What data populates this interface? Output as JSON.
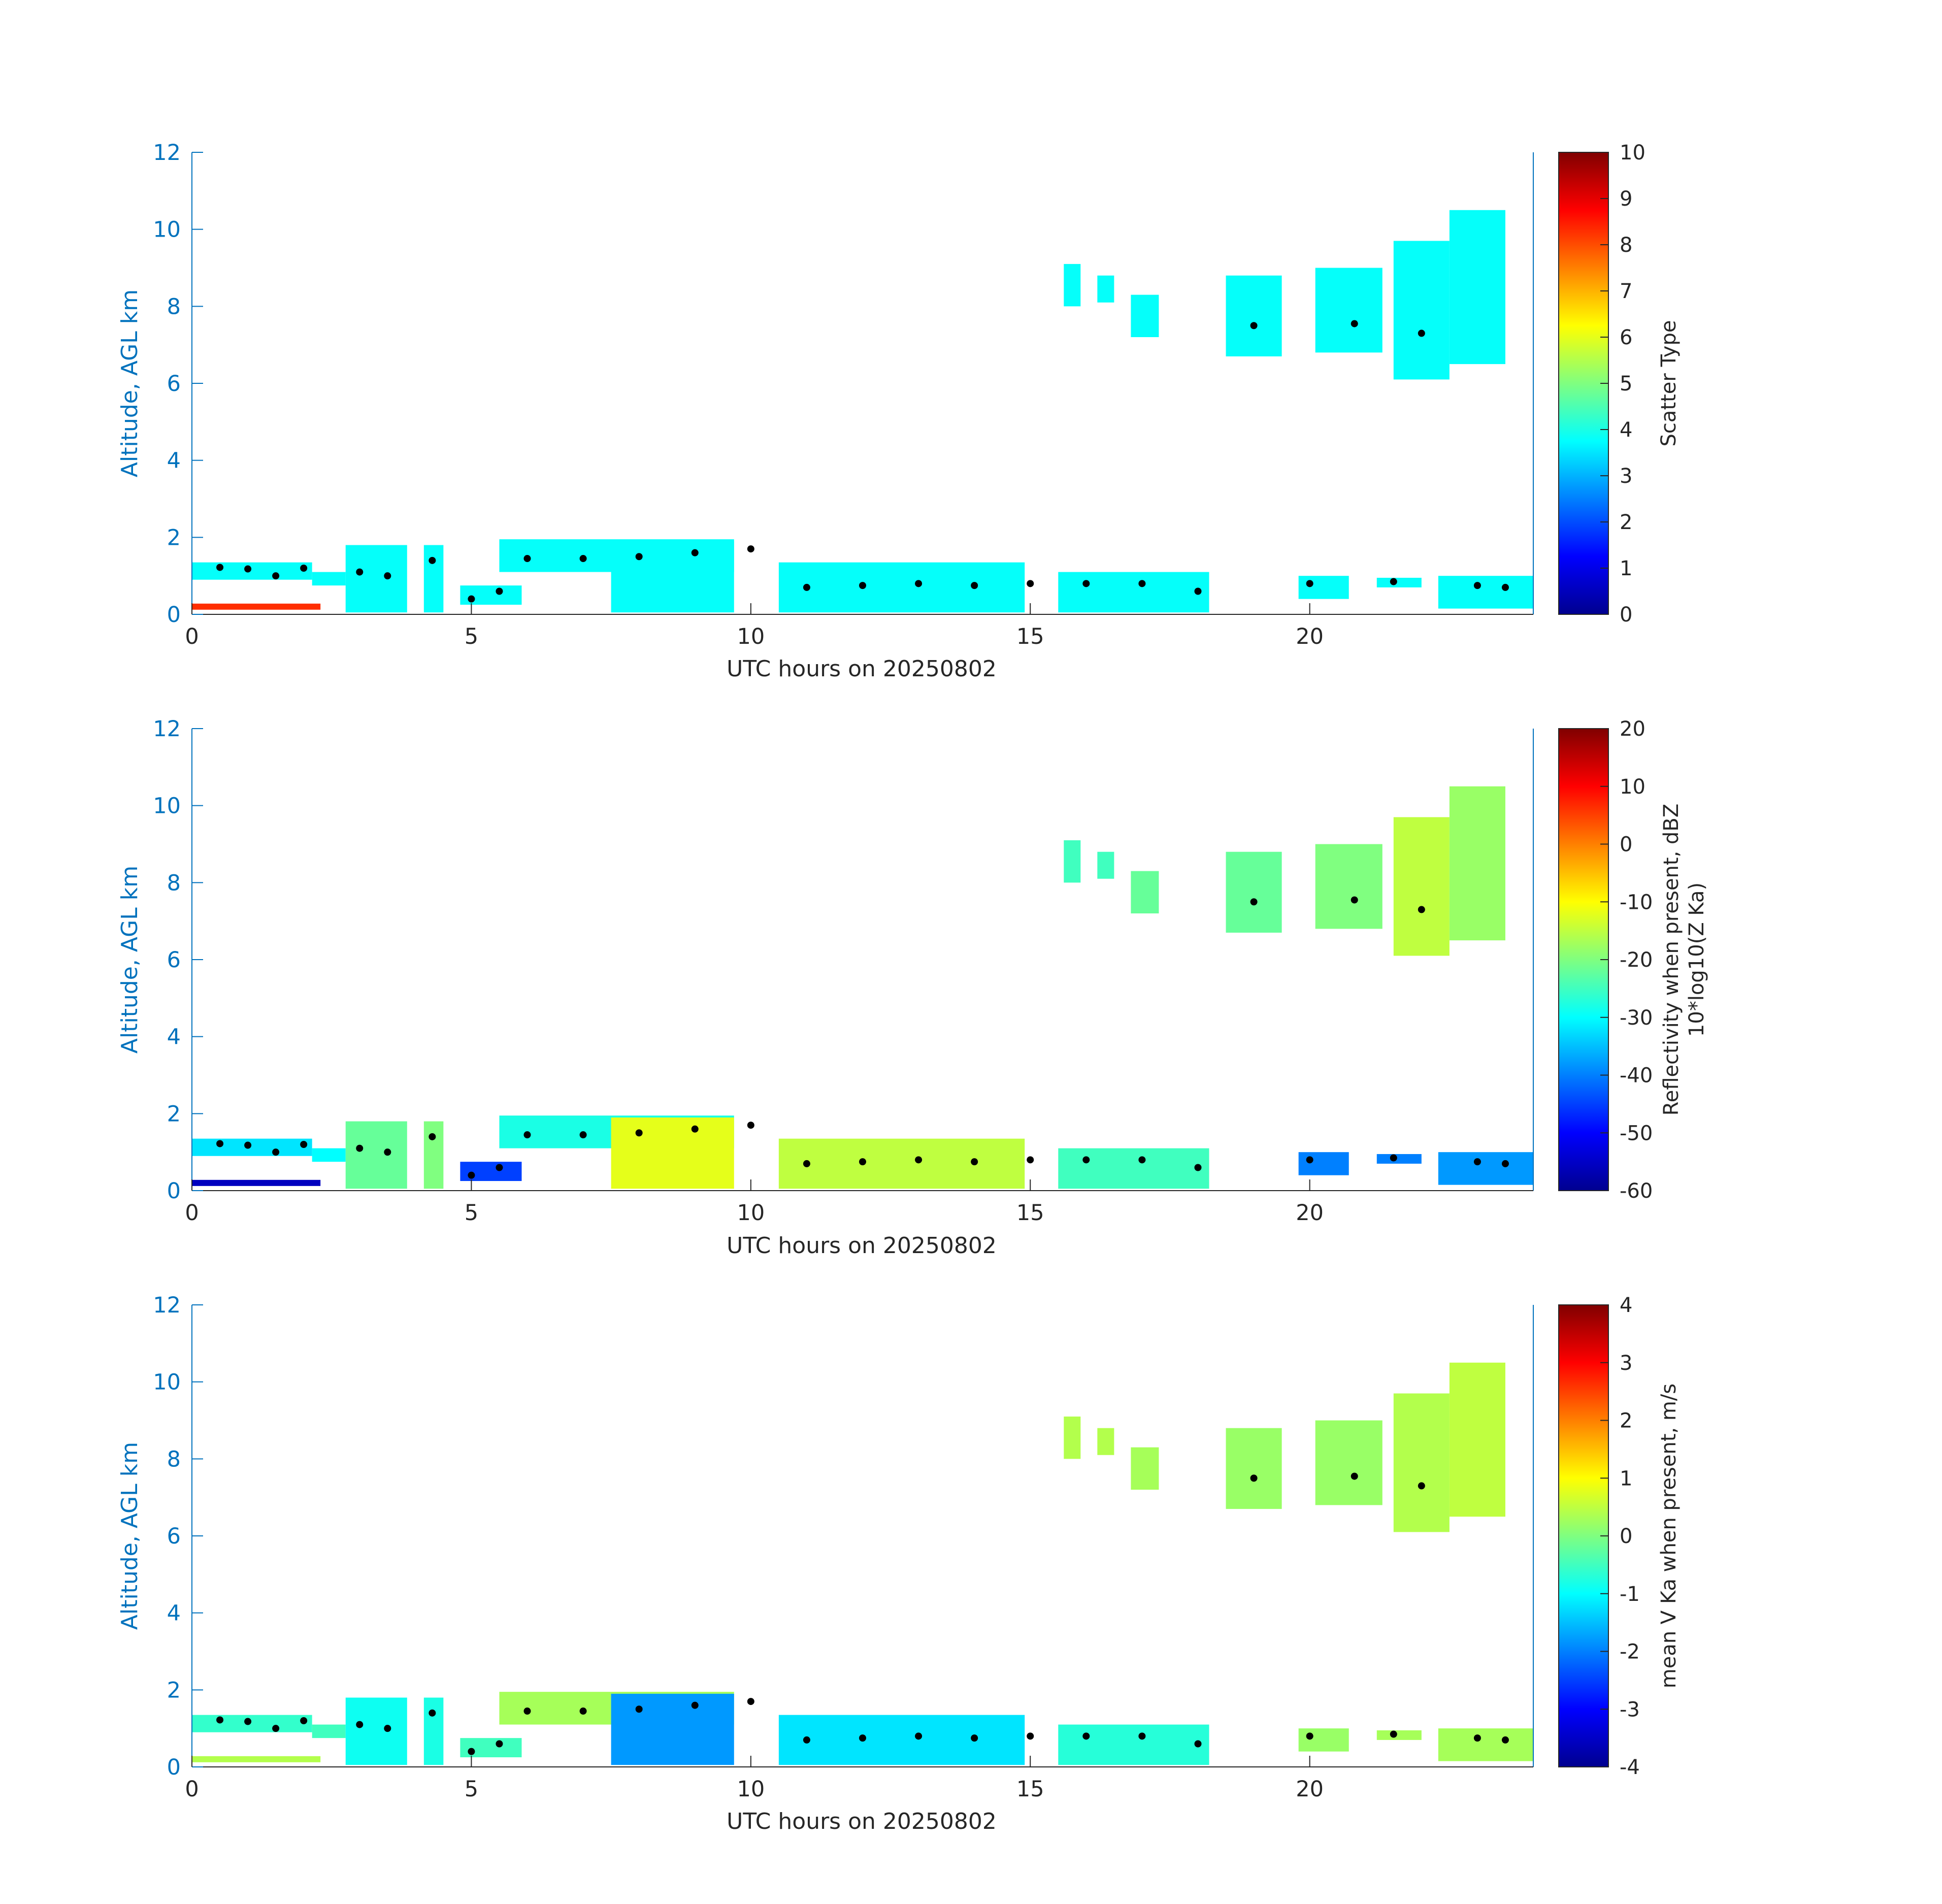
{
  "figure": {
    "panels": [
      {
        "id": "scatter-type",
        "ylabel": "Altitude, AGL km",
        "xlabel": "UTC hours on 20250802",
        "colorbar": {
          "label_lines": [
            "Scatter Type"
          ],
          "range": [
            0,
            10
          ],
          "ticks": [
            "0",
            "1",
            "2",
            "3",
            "4",
            "5",
            "6",
            "7",
            "8",
            "9",
            "10"
          ]
        }
      },
      {
        "id": "reflectivity",
        "ylabel": "Altitude, AGL km",
        "xlabel": "UTC hours on 20250802",
        "colorbar": {
          "label_lines": [
            "Reflectivity when present, dBZ",
            "10*log10(Z Ka)"
          ],
          "range": [
            -60,
            20
          ],
          "ticks": [
            "-60",
            "-50",
            "-40",
            "-30",
            "-20",
            "-10",
            "0",
            "10",
            "20"
          ]
        }
      },
      {
        "id": "doppler-velocity",
        "ylabel": "Altitude, AGL km",
        "xlabel": "UTC hours on 20250802",
        "colorbar": {
          "label_lines": [
            "mean V Ka when present, m/s"
          ],
          "range": [
            -4,
            4
          ],
          "ticks": [
            "-4",
            "-3",
            "-2",
            "-1",
            "0",
            "1",
            "2",
            "3",
            "4"
          ]
        }
      }
    ],
    "axis_color": "#0072BD",
    "dot_color": "#000000"
  },
  "chart_data": [
    {
      "type": "heatmap",
      "title": "",
      "xlabel": "UTC hours on 20250802",
      "ylabel": "Altitude, AGL km",
      "xlim": [
        0,
        24
      ],
      "ylim": [
        0,
        12
      ],
      "xticks": [
        0,
        5,
        10,
        15,
        20
      ],
      "yticks": [
        0,
        2,
        4,
        6,
        8,
        10,
        12
      ],
      "colorbar_label": "Scatter Type",
      "clim": [
        0,
        10
      ],
      "colormap": "jet",
      "cloud_layers": [
        {
          "x": [
            0.0,
            2.15
          ],
          "ybot": 0.9,
          "ytop": 1.35,
          "value": 3.8
        },
        {
          "x": [
            2.15,
            2.75
          ],
          "ybot": 0.75,
          "ytop": 1.1,
          "value": 3.8
        },
        {
          "x": [
            2.75,
            3.85
          ],
          "ybot": 0.05,
          "ytop": 1.8,
          "value": 3.8
        },
        {
          "x": [
            4.15,
            4.5
          ],
          "ybot": 0.05,
          "ytop": 1.8,
          "value": 3.8
        },
        {
          "x": [
            4.8,
            5.9
          ],
          "ybot": 0.25,
          "ytop": 0.75,
          "value": 3.8
        },
        {
          "x": [
            5.5,
            9.7
          ],
          "ybot": 1.1,
          "ytop": 1.95,
          "value": 3.8
        },
        {
          "x": [
            7.5,
            9.7
          ],
          "ybot": 0.05,
          "ytop": 1.9,
          "value": 3.8
        },
        {
          "x": [
            10.5,
            14.9
          ],
          "ybot": 0.05,
          "ytop": 1.35,
          "value": 3.8
        },
        {
          "x": [
            15.5,
            18.2
          ],
          "ybot": 0.05,
          "ytop": 1.1,
          "value": 3.8
        },
        {
          "x": [
            19.8,
            20.7
          ],
          "ybot": 0.4,
          "ytop": 1.0,
          "value": 3.8
        },
        {
          "x": [
            21.2,
            22.0
          ],
          "ybot": 0.7,
          "ytop": 0.95,
          "value": 3.8
        },
        {
          "x": [
            22.3,
            24.0
          ],
          "ybot": 0.15,
          "ytop": 1.0,
          "value": 3.8
        },
        {
          "x": [
            15.6,
            15.9
          ],
          "ybot": 8.0,
          "ytop": 9.1,
          "value": 3.8
        },
        {
          "x": [
            16.2,
            16.5
          ],
          "ybot": 8.1,
          "ytop": 8.8,
          "value": 3.8
        },
        {
          "x": [
            16.8,
            17.3
          ],
          "ybot": 7.2,
          "ytop": 8.3,
          "value": 3.8
        },
        {
          "x": [
            18.5,
            19.5
          ],
          "ybot": 6.7,
          "ytop": 8.8,
          "value": 3.8
        },
        {
          "x": [
            20.1,
            21.3
          ],
          "ybot": 6.8,
          "ytop": 9.0,
          "value": 3.8
        },
        {
          "x": [
            21.5,
            22.5
          ],
          "ybot": 6.1,
          "ytop": 9.7,
          "value": 3.8
        },
        {
          "x": [
            22.5,
            23.5
          ],
          "ybot": 6.5,
          "ytop": 10.5,
          "value": 3.8
        }
      ],
      "surface_band": {
        "x": [
          0.0,
          2.3
        ],
        "y": 0.2,
        "value": 8.3
      },
      "cloud_base_points": [
        [
          0.5,
          1.22
        ],
        [
          1.0,
          1.18
        ],
        [
          1.5,
          1.0
        ],
        [
          2.0,
          1.2
        ],
        [
          3.0,
          1.1
        ],
        [
          3.5,
          1.0
        ],
        [
          4.3,
          1.4
        ],
        [
          5.0,
          0.4
        ],
        [
          5.5,
          0.6
        ],
        [
          6.0,
          1.45
        ],
        [
          7.0,
          1.45
        ],
        [
          8.0,
          1.5
        ],
        [
          9.0,
          1.6
        ],
        [
          10.0,
          1.7
        ],
        [
          11.0,
          0.7
        ],
        [
          12.0,
          0.75
        ],
        [
          13.0,
          0.8
        ],
        [
          14.0,
          0.75
        ],
        [
          15.0,
          0.8
        ],
        [
          16.0,
          0.8
        ],
        [
          17.0,
          0.8
        ],
        [
          18.0,
          0.6
        ],
        [
          19.0,
          7.5
        ],
        [
          20.0,
          0.8
        ],
        [
          20.8,
          7.55
        ],
        [
          21.5,
          0.85
        ],
        [
          22.0,
          7.3
        ],
        [
          23.0,
          0.75
        ],
        [
          23.5,
          0.7
        ]
      ]
    },
    {
      "type": "heatmap",
      "title": "",
      "xlabel": "UTC hours on 20250802",
      "ylabel": "Altitude, AGL km",
      "xlim": [
        0,
        24
      ],
      "ylim": [
        0,
        12
      ],
      "xticks": [
        0,
        5,
        10,
        15,
        20
      ],
      "yticks": [
        0,
        2,
        4,
        6,
        8,
        10,
        12
      ],
      "colorbar_label": "Reflectivity when present, dBZ 10*log10(Z Ka)",
      "clim": [
        -60,
        20
      ],
      "colormap": "jet",
      "cloud_layers": [
        {
          "x": [
            0.0,
            2.15
          ],
          "ybot": 0.9,
          "ytop": 1.35,
          "value": -32
        },
        {
          "x": [
            2.15,
            2.75
          ],
          "ybot": 0.75,
          "ytop": 1.1,
          "value": -30
        },
        {
          "x": [
            2.75,
            3.85
          ],
          "ybot": 0.05,
          "ytop": 1.8,
          "value": -22
        },
        {
          "x": [
            4.15,
            4.5
          ],
          "ybot": 0.05,
          "ytop": 1.8,
          "value": -20
        },
        {
          "x": [
            4.8,
            5.9
          ],
          "ybot": 0.25,
          "ytop": 0.75,
          "value": -45
        },
        {
          "x": [
            5.5,
            9.7
          ],
          "ybot": 1.1,
          "ytop": 1.95,
          "value": -28
        },
        {
          "x": [
            7.5,
            9.7
          ],
          "ybot": 0.05,
          "ytop": 1.9,
          "value": -12
        },
        {
          "x": [
            10.5,
            14.9
          ],
          "ybot": 0.05,
          "ytop": 1.35,
          "value": -15
        },
        {
          "x": [
            15.5,
            18.2
          ],
          "ybot": 0.05,
          "ytop": 1.1,
          "value": -25
        },
        {
          "x": [
            19.8,
            20.7
          ],
          "ybot": 0.4,
          "ytop": 1.0,
          "value": -40
        },
        {
          "x": [
            21.2,
            22.0
          ],
          "ybot": 0.7,
          "ytop": 0.95,
          "value": -40
        },
        {
          "x": [
            22.3,
            24.0
          ],
          "ybot": 0.15,
          "ytop": 1.0,
          "value": -38
        },
        {
          "x": [
            15.6,
            15.9
          ],
          "ybot": 8.0,
          "ytop": 9.1,
          "value": -25
        },
        {
          "x": [
            16.2,
            16.5
          ],
          "ybot": 8.1,
          "ytop": 8.8,
          "value": -25
        },
        {
          "x": [
            16.8,
            17.3
          ],
          "ybot": 7.2,
          "ytop": 8.3,
          "value": -22
        },
        {
          "x": [
            18.5,
            19.5
          ],
          "ybot": 6.7,
          "ytop": 8.8,
          "value": -22
        },
        {
          "x": [
            20.1,
            21.3
          ],
          "ybot": 6.8,
          "ytop": 9.0,
          "value": -20
        },
        {
          "x": [
            21.5,
            22.5
          ],
          "ybot": 6.1,
          "ytop": 9.7,
          "value": -15
        },
        {
          "x": [
            22.5,
            23.5
          ],
          "ybot": 6.5,
          "ytop": 10.5,
          "value": -18
        }
      ],
      "surface_band": {
        "x": [
          0.0,
          2.3
        ],
        "y": 0.2,
        "value": -55
      },
      "cloud_base_points": [
        [
          0.5,
          1.22
        ],
        [
          1.0,
          1.18
        ],
        [
          1.5,
          1.0
        ],
        [
          2.0,
          1.2
        ],
        [
          3.0,
          1.1
        ],
        [
          3.5,
          1.0
        ],
        [
          4.3,
          1.4
        ],
        [
          5.0,
          0.4
        ],
        [
          5.5,
          0.6
        ],
        [
          6.0,
          1.45
        ],
        [
          7.0,
          1.45
        ],
        [
          8.0,
          1.5
        ],
        [
          9.0,
          1.6
        ],
        [
          10.0,
          1.7
        ],
        [
          11.0,
          0.7
        ],
        [
          12.0,
          0.75
        ],
        [
          13.0,
          0.8
        ],
        [
          14.0,
          0.75
        ],
        [
          15.0,
          0.8
        ],
        [
          16.0,
          0.8
        ],
        [
          17.0,
          0.8
        ],
        [
          18.0,
          0.6
        ],
        [
          19.0,
          7.5
        ],
        [
          20.0,
          0.8
        ],
        [
          20.8,
          7.55
        ],
        [
          21.5,
          0.85
        ],
        [
          22.0,
          7.3
        ],
        [
          23.0,
          0.75
        ],
        [
          23.5,
          0.7
        ]
      ]
    },
    {
      "type": "heatmap",
      "title": "",
      "xlabel": "UTC hours on 20250802",
      "ylabel": "Altitude, AGL km",
      "xlim": [
        0,
        24
      ],
      "ylim": [
        0,
        12
      ],
      "xticks": [
        0,
        5,
        10,
        15,
        20
      ],
      "yticks": [
        0,
        2,
        4,
        6,
        8,
        10,
        12
      ],
      "colorbar_label": "mean V Ka when present, m/s",
      "clim": [
        -4,
        4
      ],
      "colormap": "jet",
      "cloud_layers": [
        {
          "x": [
            0.0,
            2.15
          ],
          "ybot": 0.9,
          "ytop": 1.35,
          "value": -0.6
        },
        {
          "x": [
            2.15,
            2.75
          ],
          "ybot": 0.75,
          "ytop": 1.1,
          "value": -0.5
        },
        {
          "x": [
            2.75,
            3.85
          ],
          "ybot": 0.05,
          "ytop": 1.8,
          "value": -0.9
        },
        {
          "x": [
            4.15,
            4.5
          ],
          "ybot": 0.05,
          "ytop": 1.8,
          "value": -0.8
        },
        {
          "x": [
            4.8,
            5.9
          ],
          "ybot": 0.25,
          "ytop": 0.75,
          "value": -0.5
        },
        {
          "x": [
            5.5,
            9.7
          ],
          "ybot": 1.1,
          "ytop": 1.95,
          "value": 0.3
        },
        {
          "x": [
            7.5,
            9.7
          ],
          "ybot": 0.05,
          "ytop": 1.9,
          "value": -1.8
        },
        {
          "x": [
            10.5,
            14.9
          ],
          "ybot": 0.05,
          "ytop": 1.35,
          "value": -1.2
        },
        {
          "x": [
            15.5,
            18.2
          ],
          "ybot": 0.05,
          "ytop": 1.1,
          "value": -0.7
        },
        {
          "x": [
            19.8,
            20.7
          ],
          "ybot": 0.4,
          "ytop": 1.0,
          "value": 0.2
        },
        {
          "x": [
            21.2,
            22.0
          ],
          "ybot": 0.7,
          "ytop": 0.95,
          "value": 0.3
        },
        {
          "x": [
            22.3,
            24.0
          ],
          "ybot": 0.15,
          "ytop": 1.0,
          "value": 0.3
        },
        {
          "x": [
            15.6,
            15.9
          ],
          "ybot": 8.0,
          "ytop": 9.1,
          "value": 0.4
        },
        {
          "x": [
            16.2,
            16.5
          ],
          "ybot": 8.1,
          "ytop": 8.8,
          "value": 0.4
        },
        {
          "x": [
            16.8,
            17.3
          ],
          "ybot": 7.2,
          "ytop": 8.3,
          "value": 0.3
        },
        {
          "x": [
            18.5,
            19.5
          ],
          "ybot": 6.7,
          "ytop": 8.8,
          "value": 0.2
        },
        {
          "x": [
            20.1,
            21.3
          ],
          "ybot": 6.8,
          "ytop": 9.0,
          "value": 0.2
        },
        {
          "x": [
            21.5,
            22.5
          ],
          "ybot": 6.1,
          "ytop": 9.7,
          "value": 0.4
        },
        {
          "x": [
            22.5,
            23.5
          ],
          "ybot": 6.5,
          "ytop": 10.5,
          "value": 0.5
        }
      ],
      "surface_band": {
        "x": [
          0.0,
          2.3
        ],
        "y": 0.2,
        "value": 0.4
      },
      "cloud_base_points": [
        [
          0.5,
          1.22
        ],
        [
          1.0,
          1.18
        ],
        [
          1.5,
          1.0
        ],
        [
          2.0,
          1.2
        ],
        [
          3.0,
          1.1
        ],
        [
          3.5,
          1.0
        ],
        [
          4.3,
          1.4
        ],
        [
          5.0,
          0.4
        ],
        [
          5.5,
          0.6
        ],
        [
          6.0,
          1.45
        ],
        [
          7.0,
          1.45
        ],
        [
          8.0,
          1.5
        ],
        [
          9.0,
          1.6
        ],
        [
          10.0,
          1.7
        ],
        [
          11.0,
          0.7
        ],
        [
          12.0,
          0.75
        ],
        [
          13.0,
          0.8
        ],
        [
          14.0,
          0.75
        ],
        [
          15.0,
          0.8
        ],
        [
          16.0,
          0.8
        ],
        [
          17.0,
          0.8
        ],
        [
          18.0,
          0.6
        ],
        [
          19.0,
          7.5
        ],
        [
          20.0,
          0.8
        ],
        [
          20.8,
          7.55
        ],
        [
          21.5,
          0.85
        ],
        [
          22.0,
          7.3
        ],
        [
          23.0,
          0.75
        ],
        [
          23.5,
          0.7
        ]
      ]
    }
  ]
}
